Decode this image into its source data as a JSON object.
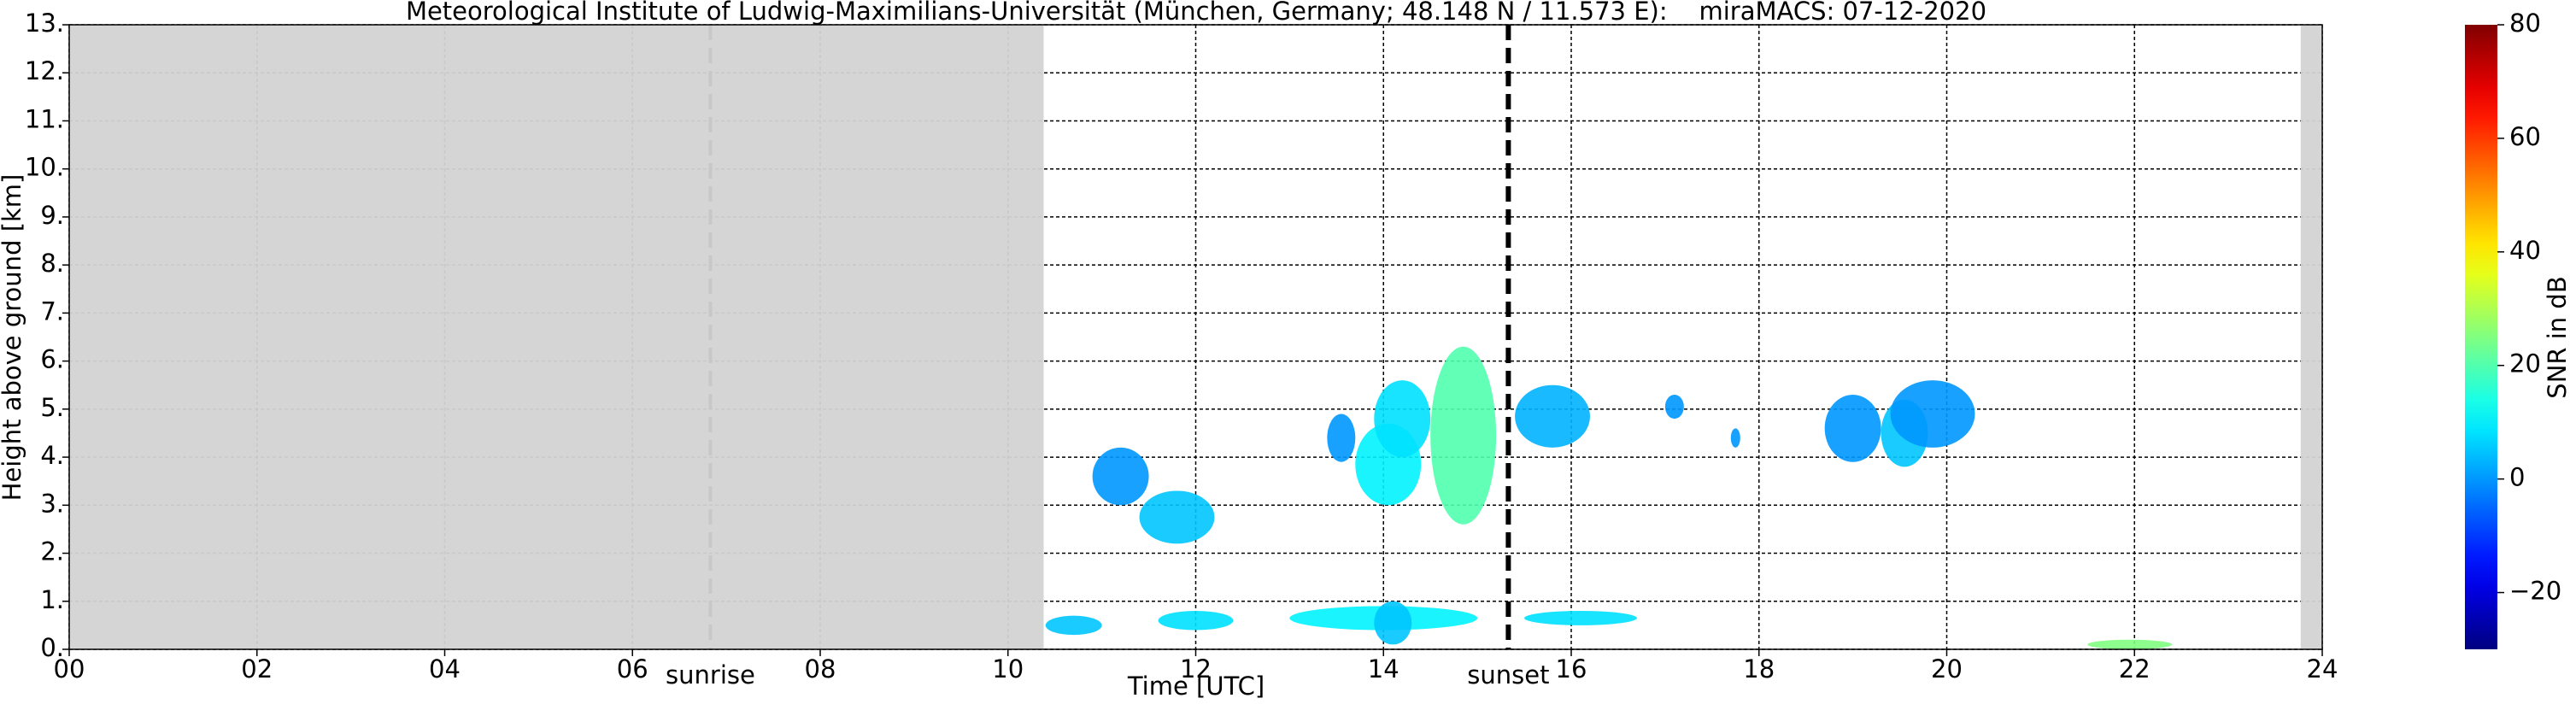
{
  "chart_data": {
    "type": "time_height",
    "title": "Meteorological Institute of Ludwig-Maximilians-Universität (München, Germany; 48.148 N / 11.573 E):    miraMACS: 07-12-2020",
    "xlabel": "Time [UTC]",
    "ylabel": "Height above ground [km]",
    "colorbar_label": "SNR in dB",
    "xlim": [
      0,
      24
    ],
    "xticks": [
      {
        "value": 0,
        "label": "00"
      },
      {
        "value": 2,
        "label": "02"
      },
      {
        "value": 4,
        "label": "04"
      },
      {
        "value": 6,
        "label": "06"
      },
      {
        "value": 8,
        "label": "08"
      },
      {
        "value": 10,
        "label": "10"
      },
      12,
      14,
      16,
      18,
      20,
      22,
      24
    ],
    "ylim": [
      0,
      13
    ],
    "yticks": [
      {
        "value": 0,
        "label": "0."
      },
      {
        "value": 1,
        "label": "1."
      },
      {
        "value": 2,
        "label": "2."
      },
      {
        "value": 3,
        "label": "3."
      },
      {
        "value": 4,
        "label": "4."
      },
      {
        "value": 5,
        "label": "5."
      },
      {
        "value": 6,
        "label": "6."
      },
      {
        "value": 7,
        "label": "7."
      },
      {
        "value": 8,
        "label": "8."
      },
      {
        "value": 9,
        "label": "9."
      },
      {
        "value": 10,
        "label": "10."
      },
      {
        "value": 11,
        "label": "11."
      },
      {
        "value": 12,
        "label": "12."
      },
      {
        "value": 13,
        "label": "13."
      }
    ],
    "clim": [
      -30,
      80
    ],
    "cticks": [
      {
        "value": -20,
        "label": "−20"
      },
      0,
      20,
      40,
      60,
      80
    ],
    "colormap": "jet",
    "grid": true,
    "no_data": [
      [
        0,
        10.38
      ],
      [
        23.77,
        24
      ]
    ],
    "no_data_color": "#d3d3d3",
    "annotations": [
      {
        "text": "sunrise",
        "x": 6.83,
        "color": "#c8c8c8"
      },
      {
        "text": "sunset",
        "x": 15.33,
        "color": "#000000"
      }
    ],
    "echoes": [
      {
        "time": [
          10.9,
          11.5
        ],
        "height": [
          3.0,
          4.2
        ],
        "snr": 0
      },
      {
        "time": [
          11.4,
          12.2
        ],
        "height": [
          2.2,
          3.3
        ],
        "snr": 5
      },
      {
        "time": [
          13.7,
          14.4
        ],
        "height": [
          3.0,
          4.7
        ],
        "snr": 10
      },
      {
        "time": [
          13.9,
          14.5
        ],
        "height": [
          4.0,
          5.6
        ],
        "snr": 8
      },
      {
        "time": [
          14.5,
          15.2
        ],
        "height": [
          2.6,
          6.3
        ],
        "snr": 20
      },
      {
        "time": [
          13.4,
          13.7
        ],
        "height": [
          3.9,
          4.9
        ],
        "snr": 0
      },
      {
        "time": [
          15.4,
          16.2
        ],
        "height": [
          4.2,
          5.5
        ],
        "snr": 3
      },
      {
        "time": [
          17.0,
          17.2
        ],
        "height": [
          4.8,
          5.3
        ],
        "snr": 0
      },
      {
        "time": [
          17.7,
          17.8
        ],
        "height": [
          4.2,
          4.6
        ],
        "snr": 0
      },
      {
        "time": [
          18.7,
          19.3
        ],
        "height": [
          3.9,
          5.3
        ],
        "snr": 0
      },
      {
        "time": [
          19.3,
          19.8
        ],
        "height": [
          3.8,
          5.2
        ],
        "snr": 5
      },
      {
        "time": [
          19.4,
          20.3
        ],
        "height": [
          4.2,
          5.6
        ],
        "snr": 0
      },
      {
        "time": [
          10.4,
          11.0
        ],
        "height": [
          0.3,
          0.7
        ],
        "snr": 5
      },
      {
        "time": [
          11.6,
          12.4
        ],
        "height": [
          0.4,
          0.8
        ],
        "snr": 8
      },
      {
        "time": [
          13.0,
          15.0
        ],
        "height": [
          0.4,
          0.9
        ],
        "snr": 10
      },
      {
        "time": [
          13.9,
          14.3
        ],
        "height": [
          0.1,
          1.0
        ],
        "snr": 5
      },
      {
        "time": [
          15.5,
          16.7
        ],
        "height": [
          0.5,
          0.8
        ],
        "snr": 8
      },
      {
        "time": [
          21.5,
          22.4
        ],
        "height": [
          0.0,
          0.2
        ],
        "snr": 25
      }
    ]
  }
}
